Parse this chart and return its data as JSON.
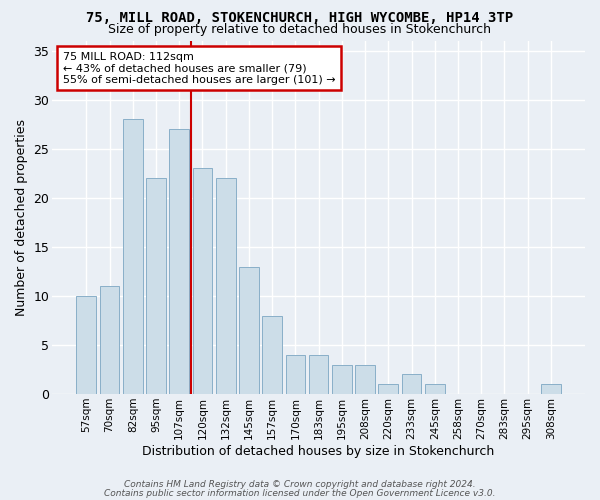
{
  "title": "75, MILL ROAD, STOKENCHURCH, HIGH WYCOMBE, HP14 3TP",
  "subtitle": "Size of property relative to detached houses in Stokenchurch",
  "xlabel": "Distribution of detached houses by size in Stokenchurch",
  "ylabel": "Number of detached properties",
  "footnote1": "Contains HM Land Registry data © Crown copyright and database right 2024.",
  "footnote2": "Contains public sector information licensed under the Open Government Licence v3.0.",
  "annotation_line1": "75 MILL ROAD: 112sqm",
  "annotation_line2": "← 43% of detached houses are smaller (79)",
  "annotation_line3": "55% of semi-detached houses are larger (101) →",
  "bar_labels": [
    "57sqm",
    "70sqm",
    "82sqm",
    "95sqm",
    "107sqm",
    "120sqm",
    "132sqm",
    "145sqm",
    "157sqm",
    "170sqm",
    "183sqm",
    "195sqm",
    "208sqm",
    "220sqm",
    "233sqm",
    "245sqm",
    "258sqm",
    "270sqm",
    "283sqm",
    "295sqm",
    "308sqm"
  ],
  "bar_values": [
    10,
    11,
    28,
    22,
    27,
    23,
    22,
    13,
    8,
    4,
    4,
    3,
    3,
    1,
    2,
    1,
    0,
    0,
    0,
    0,
    1
  ],
  "bar_color": "#ccdde8",
  "bar_edge_color": "#89afc8",
  "reference_line_x": 4.5,
  "reference_line_color": "#cc0000",
  "bg_color": "#eaeff5",
  "plot_bg_color": "#eaeff5",
  "grid_color": "#ffffff",
  "ylim": [
    0,
    36
  ],
  "yticks": [
    0,
    5,
    10,
    15,
    20,
    25,
    30,
    35
  ]
}
